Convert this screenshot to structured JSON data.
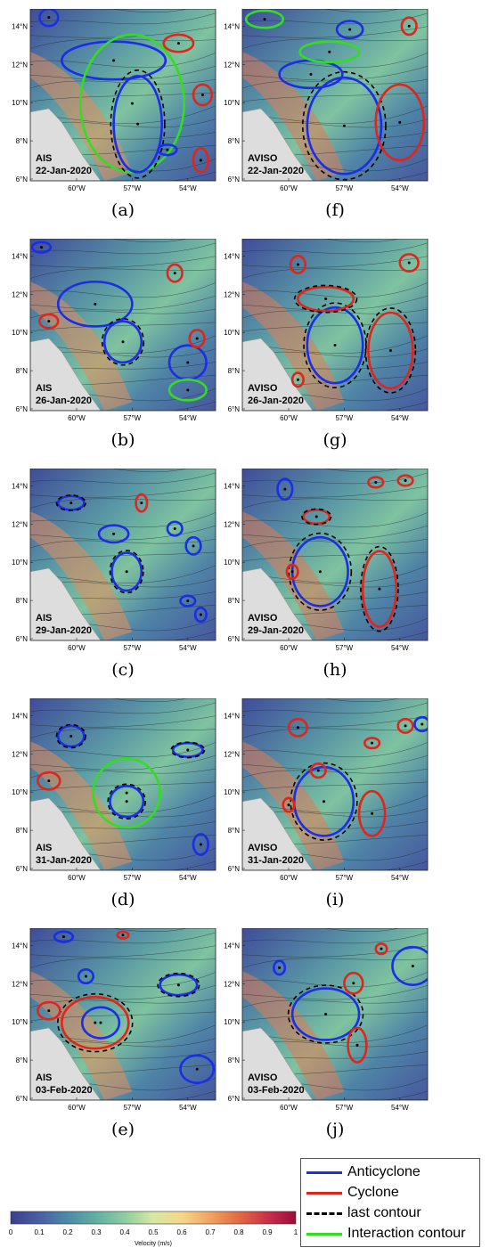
{
  "panels": [
    {
      "id": "a",
      "source": "AIS",
      "date": "22-Jan-2020",
      "caption": "(a)"
    },
    {
      "id": "f",
      "source": "AVISO",
      "date": "22-Jan-2020",
      "caption": "(f)"
    },
    {
      "id": "b",
      "source": "AIS",
      "date": "26-Jan-2020",
      "caption": "(b)"
    },
    {
      "id": "g",
      "source": "AVISO",
      "date": "26-Jan-2020",
      "caption": "(g)"
    },
    {
      "id": "c",
      "source": "AIS",
      "date": "29-Jan-2020",
      "caption": "(c)"
    },
    {
      "id": "h",
      "source": "AVISO",
      "date": "29-Jan-2020",
      "caption": "(h)"
    },
    {
      "id": "d",
      "source": "AIS",
      "date": "31-Jan-2020",
      "caption": "(d)"
    },
    {
      "id": "i",
      "source": "AVISO",
      "date": "31-Jan-2020",
      "caption": "(i)"
    },
    {
      "id": "e",
      "source": "AIS",
      "date": "03-Feb-2020",
      "caption": "(e)"
    },
    {
      "id": "j",
      "source": "AVISO",
      "date": "03-Feb-2020",
      "caption": "(j)"
    }
  ],
  "axes": {
    "y_ticks": [
      "6°N",
      "8°N",
      "10°N",
      "12°N",
      "14°N"
    ],
    "x_ticks": [
      "60°W",
      "57°W",
      "54°W"
    ]
  },
  "legend": {
    "items": [
      {
        "label": "Anticyclone",
        "color": "#1a2ee6",
        "style": "solid"
      },
      {
        "label": "Cyclone",
        "color": "#e0251b",
        "style": "solid"
      },
      {
        "label": "last contour",
        "color": "#000000",
        "style": "dashed"
      },
      {
        "label": "Interaction contour",
        "color": "#33dd22",
        "style": "solid"
      }
    ]
  },
  "colorbar": {
    "label": "Velocity (m/s)",
    "ticks": [
      "0",
      "0.1",
      "0.2",
      "0.3",
      "0.4",
      "0.5",
      "0.6",
      "0.7",
      "0.8",
      "0.9",
      "1"
    ],
    "colors": [
      "#3b3f8f",
      "#4a5fa6",
      "#4d8aa8",
      "#5fb0a3",
      "#8fcca0",
      "#d7e8a5",
      "#f4d78a",
      "#f2a261",
      "#e26a43",
      "#c8324a",
      "#9e0a3c"
    ]
  }
}
